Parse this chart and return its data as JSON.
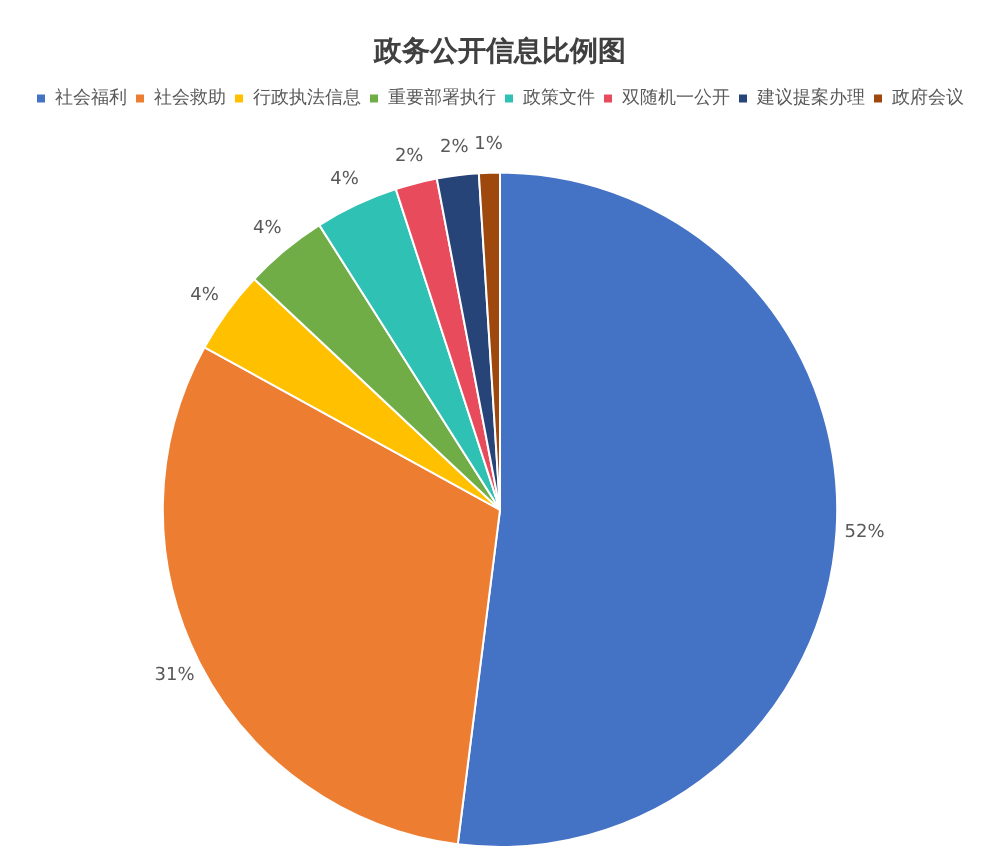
{
  "chart_data": {
    "type": "pie",
    "title": "政务公开信息比例图",
    "categories": [
      "社会福利",
      "社会救助",
      "行政执法信息",
      "重要部署执行",
      "政策文件",
      "双随机一公开",
      "建议提案办理",
      "政府会议"
    ],
    "values": [
      52,
      31,
      4,
      4,
      4,
      2,
      2,
      1
    ],
    "colors": [
      "#4472c4",
      "#ed7d31",
      "#ffc000",
      "#70ad47",
      "#2fc1b4",
      "#e84c5c",
      "#264478",
      "#9e480e"
    ],
    "value_labels": [
      "52%",
      "31%",
      "4%",
      "4%",
      "4%",
      "2%",
      "2%",
      "1%"
    ],
    "legend": "top"
  }
}
